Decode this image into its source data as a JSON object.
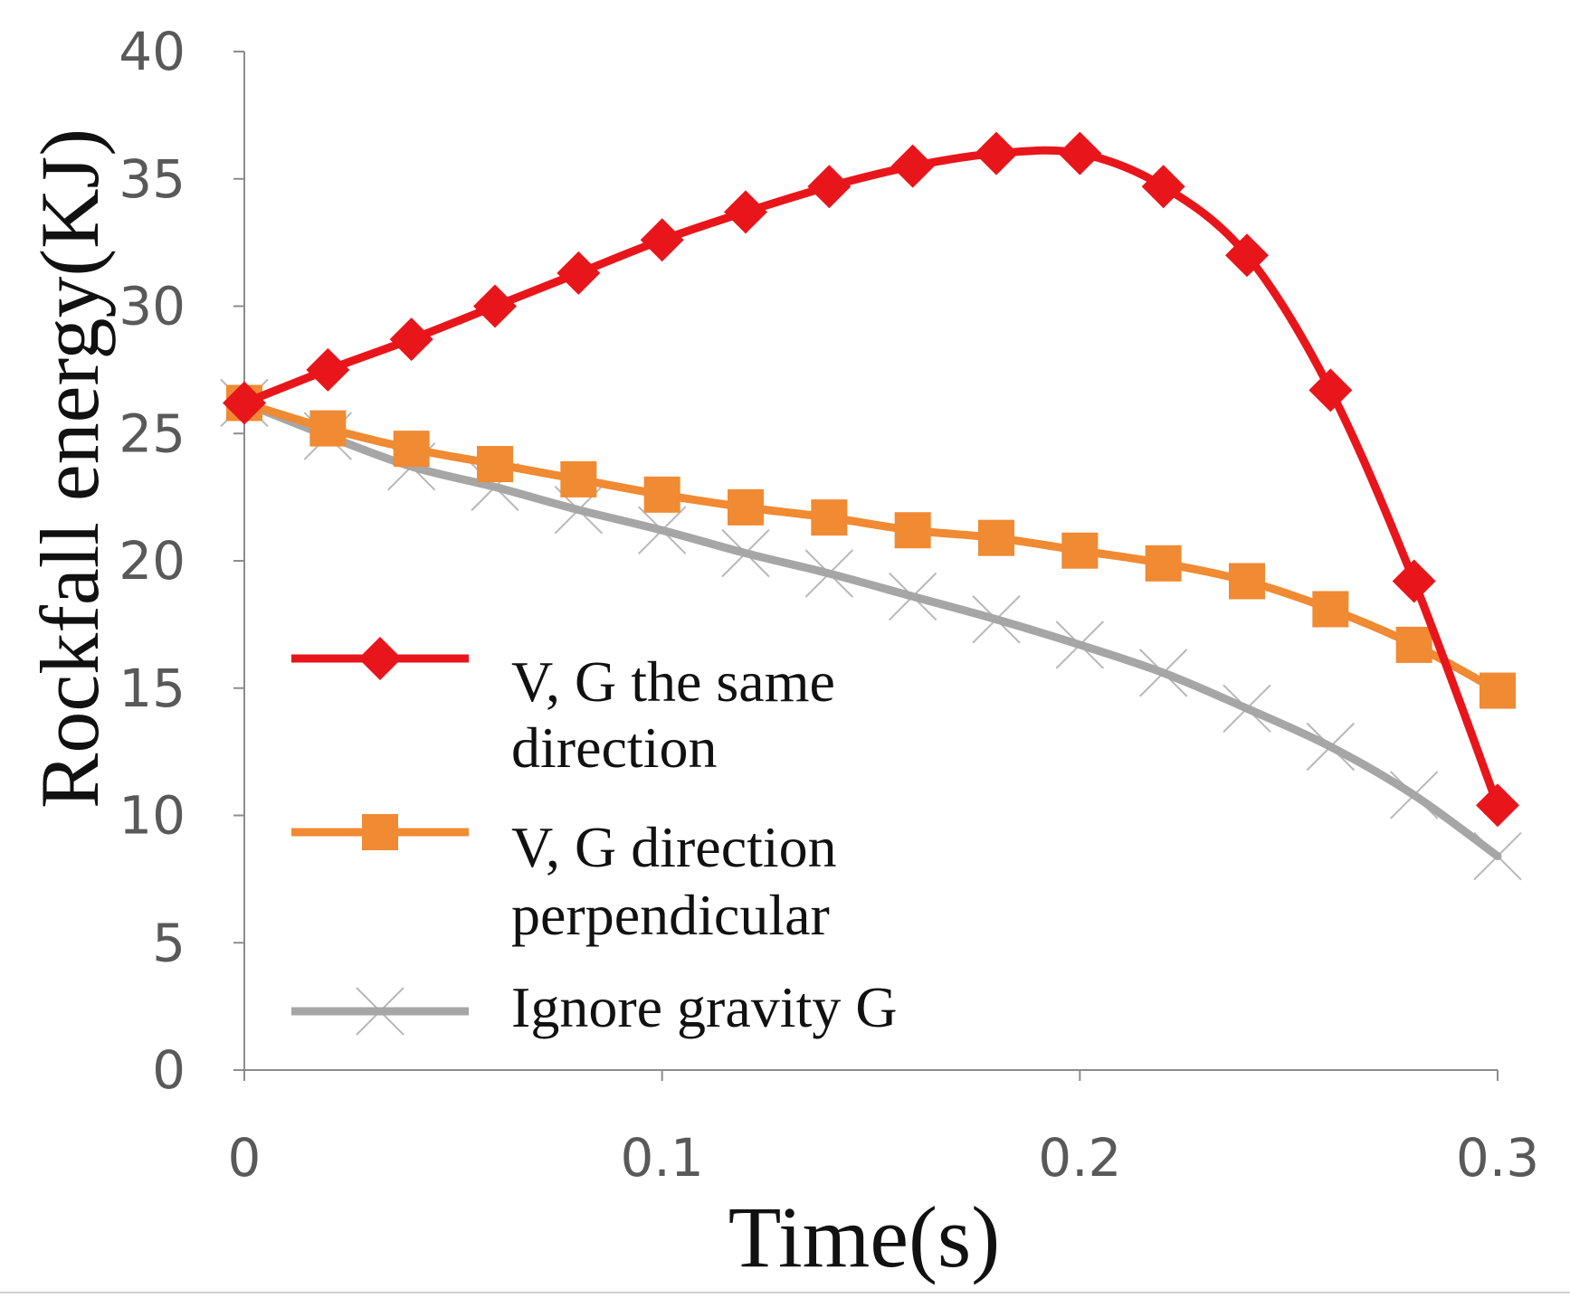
{
  "chart_data": {
    "type": "line",
    "title": "",
    "xlabel": "Time(s)",
    "ylabel": "Rockfall energy(KJ)",
    "xlim": [
      0,
      0.3
    ],
    "ylim": [
      0,
      40
    ],
    "xticks": [
      0,
      0.1,
      0.2,
      0.3
    ],
    "xtick_labels": [
      "0",
      "0.1",
      "0.2",
      "0.3"
    ],
    "yticks": [
      0,
      5,
      10,
      15,
      20,
      25,
      30,
      35,
      40
    ],
    "ytick_labels": [
      "0",
      "5",
      "10",
      "15",
      "20",
      "25",
      "30",
      "35",
      "40"
    ],
    "grid": false,
    "legend_position": "bottom-left",
    "x": [
      0,
      0.02,
      0.04,
      0.06,
      0.08,
      0.1,
      0.12,
      0.14,
      0.16,
      0.18,
      0.2,
      0.22,
      0.24,
      0.26,
      0.28,
      0.3
    ],
    "series": [
      {
        "name": "V, G the same direction",
        "legend_lines": [
          "V, G the same",
          "direction"
        ],
        "color": "#e8161b",
        "marker": "diamond",
        "values": [
          26.2,
          27.5,
          28.7,
          30.0,
          31.3,
          32.6,
          33.7,
          34.7,
          35.5,
          36.0,
          36.0,
          34.7,
          32.0,
          26.7,
          19.2,
          10.4
        ]
      },
      {
        "name": "V, G direction perpendicular",
        "legend_lines": [
          "V, G direction",
          "perpendicular"
        ],
        "color": "#f08a33",
        "marker": "square",
        "values": [
          26.2,
          25.2,
          24.4,
          23.8,
          23.2,
          22.6,
          22.1,
          21.7,
          21.2,
          20.9,
          20.4,
          19.9,
          19.2,
          18.1,
          16.7,
          14.9
        ]
      },
      {
        "name": "Ignore gravity G",
        "legend_lines": [
          "Ignore gravity G"
        ],
        "color": "#a6a6a6",
        "marker": "x",
        "values": [
          26.2,
          24.9,
          23.7,
          22.9,
          22.0,
          21.2,
          20.3,
          19.5,
          18.6,
          17.7,
          16.7,
          15.6,
          14.2,
          12.7,
          10.8,
          8.4
        ]
      }
    ]
  }
}
